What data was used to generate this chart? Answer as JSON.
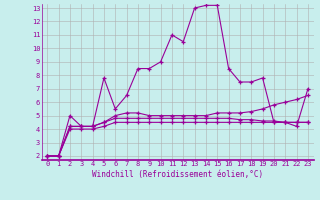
{
  "xlabel": "Windchill (Refroidissement éolien,°C)",
  "ylabel": "",
  "background_color": "#c8eeed",
  "grid_color": "#b0b0b0",
  "line_color": "#990099",
  "xlim_min": -0.5,
  "xlim_max": 23.5,
  "ylim_min": 1.7,
  "ylim_max": 13.3,
  "yticks": [
    2,
    3,
    4,
    5,
    6,
    7,
    8,
    9,
    10,
    11,
    12,
    13
  ],
  "xticks": [
    0,
    1,
    2,
    3,
    4,
    5,
    6,
    7,
    8,
    9,
    10,
    11,
    12,
    13,
    14,
    15,
    16,
    17,
    18,
    19,
    20,
    21,
    22,
    23
  ],
  "series": [
    [
      2.0,
      2.0,
      5.0,
      4.2,
      4.2,
      7.8,
      5.5,
      6.5,
      8.5,
      8.5,
      9.0,
      11.0,
      10.5,
      13.0,
      13.2,
      13.2,
      8.5,
      7.5,
      7.5,
      7.8,
      4.5,
      4.5,
      4.2,
      7.0
    ],
    [
      2.0,
      2.0,
      4.2,
      4.2,
      4.2,
      4.5,
      5.0,
      5.2,
      5.2,
      5.0,
      5.0,
      5.0,
      5.0,
      5.0,
      5.0,
      5.2,
      5.2,
      5.2,
      5.3,
      5.5,
      5.8,
      6.0,
      6.2,
      6.5
    ],
    [
      2.0,
      2.0,
      4.2,
      4.2,
      4.2,
      4.5,
      4.8,
      4.8,
      4.8,
      4.8,
      4.8,
      4.8,
      4.8,
      4.8,
      4.8,
      4.8,
      4.8,
      4.7,
      4.7,
      4.6,
      4.6,
      4.5,
      4.5,
      4.5
    ],
    [
      2.0,
      2.0,
      4.0,
      4.0,
      4.0,
      4.2,
      4.5,
      4.5,
      4.5,
      4.5,
      4.5,
      4.5,
      4.5,
      4.5,
      4.5,
      4.5,
      4.5,
      4.5,
      4.5,
      4.5,
      4.5,
      4.5,
      4.5,
      4.5
    ]
  ],
  "tick_fontsize": 5.0,
  "xlabel_fontsize": 5.5,
  "line_width": 0.8,
  "marker_size": 3.5
}
